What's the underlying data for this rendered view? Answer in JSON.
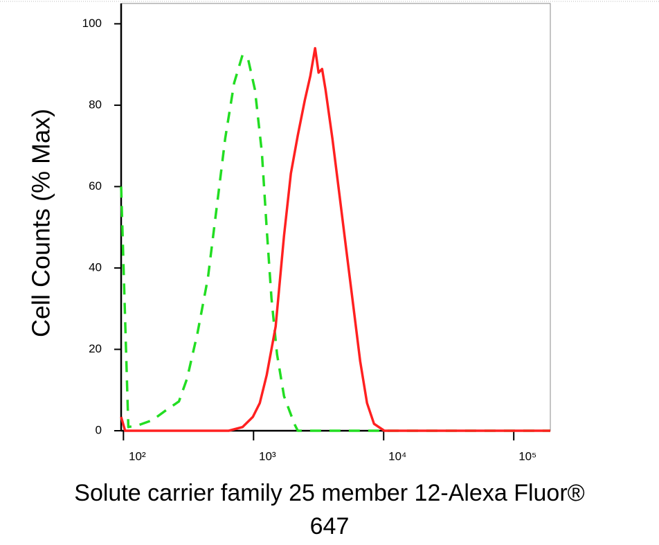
{
  "chart_data": {
    "type": "line",
    "ylabel": "Cell Counts (% Max)",
    "xlabel": [
      "Solute carrier family 25 member 12-Alexa Fluor®",
      "647"
    ],
    "xscale": "log",
    "xlim": [
      96,
      191000
    ],
    "ylim": [
      0,
      105
    ],
    "xticks": [
      {
        "value": 100,
        "label": "10²"
      },
      {
        "value": 1000,
        "label": "10³"
      },
      {
        "value": 10000,
        "label": "10⁴"
      },
      {
        "value": 100000,
        "label": "10⁵"
      }
    ],
    "yticks": [
      0,
      20,
      40,
      60,
      80,
      100
    ],
    "series": [
      {
        "color": "#22dd22",
        "dashed": true,
        "x": [
          96,
          109,
          131,
          167,
          214,
          267,
          308,
          371,
          446,
          536,
          605,
          710,
          822,
          906,
          1025,
          1158,
          1262,
          1374,
          1516,
          1714,
          2059,
          2188,
          191000
        ],
        "y": [
          60,
          0.9,
          1.4,
          2.6,
          5.1,
          7.2,
          12.8,
          24,
          37.6,
          58.1,
          71.8,
          85.5,
          92.3,
          91.5,
          83.8,
          68.4,
          49.6,
          32.5,
          18.8,
          8.5,
          1.7,
          0,
          0
        ]
      },
      {
        "color": "#ff2020",
        "dashed": false,
        "x": [
          96,
          103,
          644,
          822,
          988,
          1117,
          1262,
          1479,
          1714,
          1937,
          2188,
          2475,
          2730,
          2974,
          3162,
          3362,
          3575,
          4039,
          4567,
          5163,
          5836,
          6597,
          7454,
          8433,
          10120,
          191000
        ],
        "y": [
          3.4,
          0,
          0,
          0.9,
          3.4,
          6.8,
          13.7,
          25.6,
          47.9,
          63.2,
          72.6,
          81.2,
          87.2,
          94,
          88,
          88.9,
          83.8,
          71.8,
          58.1,
          44.4,
          30.8,
          17.1,
          6.8,
          1.7,
          0,
          0
        ]
      }
    ]
  }
}
